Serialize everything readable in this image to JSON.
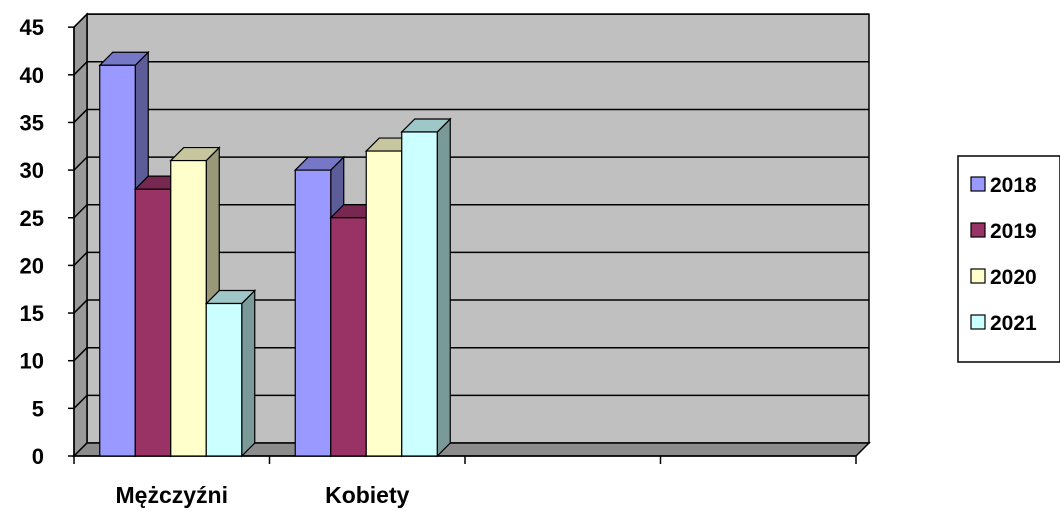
{
  "chart_data": {
    "type": "bar",
    "title": "",
    "xlabel": "",
    "ylabel": "",
    "categories": [
      "Mężczyźni",
      "Kobiety",
      "",
      ""
    ],
    "series": [
      {
        "name": "2018",
        "values": [
          41,
          30,
          null,
          null
        ],
        "color": "#9999FF"
      },
      {
        "name": "2019",
        "values": [
          28,
          25,
          null,
          null
        ],
        "color": "#993366"
      },
      {
        "name": "2020",
        "values": [
          31,
          32,
          null,
          null
        ],
        "color": "#FFFFCC"
      },
      {
        "name": "2021",
        "values": [
          16,
          34,
          null,
          null
        ],
        "color": "#CCFFFF"
      }
    ],
    "ylim": [
      0,
      45
    ],
    "yticks": [
      0,
      5,
      10,
      15,
      20,
      25,
      30,
      35,
      40,
      45
    ],
    "grid": true,
    "legend": "right",
    "style": "3d-column",
    "wall_color": "#C0C0C0"
  }
}
